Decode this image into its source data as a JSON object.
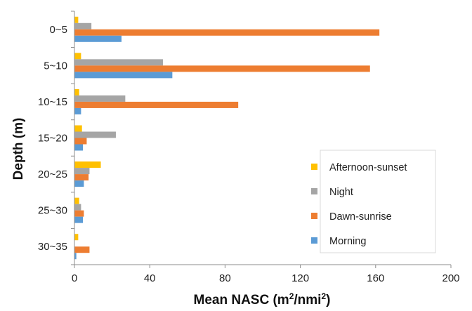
{
  "chart_data": {
    "type": "bar",
    "orientation": "horizontal",
    "categories": [
      "0~5",
      "5~10",
      "10~15",
      "15~20",
      "20~25",
      "25~30",
      "30~35"
    ],
    "series": [
      {
        "name": "Afternoon-sunset",
        "color": "#FFC000",
        "values": [
          2,
          3.5,
          2.5,
          4,
          14,
          2.5,
          2
        ]
      },
      {
        "name": "Night",
        "color": "#A5A5A5",
        "values": [
          9,
          47,
          27,
          22,
          8,
          3.5,
          0
        ]
      },
      {
        "name": "Dawn-sunrise",
        "color": "#ED7D31",
        "values": [
          162,
          157,
          87,
          6.5,
          7.5,
          5,
          8
        ]
      },
      {
        "name": "Morning",
        "color": "#5B9BD5",
        "values": [
          25,
          52,
          3.5,
          4.5,
          5,
          4.5,
          1
        ]
      }
    ],
    "xlim": [
      0,
      200
    ],
    "xticks": [
      "0",
      "40",
      "80",
      "120",
      "160",
      "200"
    ],
    "xlabel": {
      "prefix": "Mean NASC (m",
      "sup1": "2",
      "mid": "/nmi",
      "sup2": "2",
      "suffix": ")"
    },
    "ylabel": "Depth (m)",
    "legend_position": "bottom-right",
    "grid": false
  }
}
